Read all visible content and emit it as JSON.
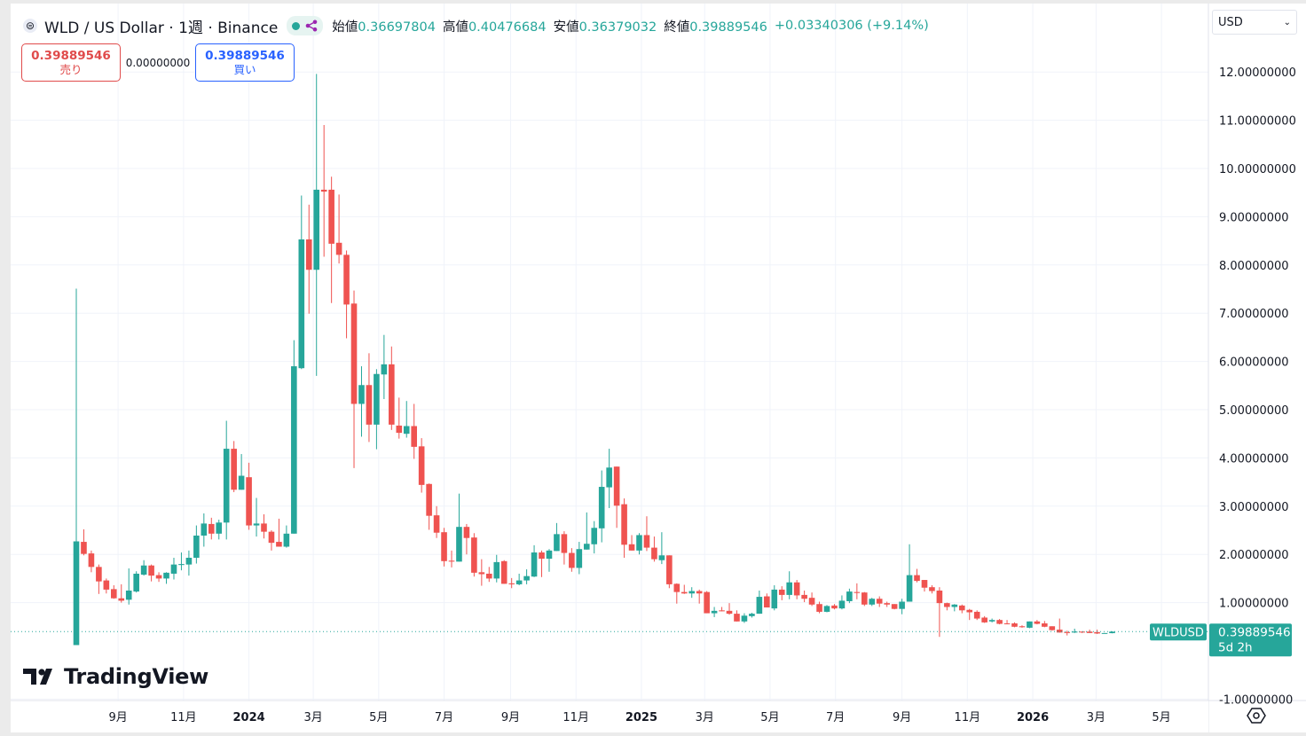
{
  "header": {
    "coin_icon": "worldcoin-logo-icon",
    "title": "WLD / US Dollar · 1週 · Binance",
    "status_dot_color": "#26a69a",
    "share_icon": "share-icon",
    "ohlc": [
      {
        "label": "始値",
        "value": "0.36697804"
      },
      {
        "label": "高値",
        "value": "0.40476684"
      },
      {
        "label": "安値",
        "value": "0.36379032"
      },
      {
        "label": "終値",
        "value": "0.39889546"
      }
    ],
    "change": "+0.03340306 (+9.14%)"
  },
  "trade": {
    "sell_price": "0.39889546",
    "sell_label": "売り",
    "spread": "0.00000000",
    "buy_price": "0.39889546",
    "buy_label": "買い"
  },
  "currency_select": {
    "value": "USD"
  },
  "logo": {
    "text": "TradingView"
  },
  "colors": {
    "up": "#26a69a",
    "down": "#ef5350",
    "grid": "#f0f3fa",
    "text": "#131722"
  },
  "chart_data": {
    "type": "candlestick",
    "symbol": "WLDUSD",
    "interval": "1週",
    "first_candle_week": "2023-07-24",
    "ylim": [
      -1,
      12.5
    ],
    "grid": true,
    "y_ticks": [
      "-1.00000000",
      "1.00000000",
      "2.00000000",
      "3.00000000",
      "4.00000000",
      "5.00000000",
      "6.00000000",
      "7.00000000",
      "8.00000000",
      "9.00000000",
      "10.00000000",
      "11.00000000",
      "12.00000000"
    ],
    "y_tick_values": [
      -1,
      1,
      2,
      3,
      4,
      5,
      6,
      7,
      8,
      9,
      10,
      11,
      12
    ],
    "x_ticks": [
      {
        "label": "9月",
        "date": "2023-09-01",
        "bold": false
      },
      {
        "label": "11月",
        "date": "2023-11-01",
        "bold": false
      },
      {
        "label": "2024",
        "date": "2024-01-01",
        "bold": true
      },
      {
        "label": "3月",
        "date": "2024-03-01",
        "bold": false
      },
      {
        "label": "5月",
        "date": "2024-05-01",
        "bold": false
      },
      {
        "label": "7月",
        "date": "2024-07-01",
        "bold": false
      },
      {
        "label": "9月",
        "date": "2024-09-01",
        "bold": false
      },
      {
        "label": "11月",
        "date": "2024-11-01",
        "bold": false
      },
      {
        "label": "2025",
        "date": "2025-01-01",
        "bold": true
      },
      {
        "label": "3月",
        "date": "2025-03-01",
        "bold": false
      },
      {
        "label": "5月",
        "date": "2025-05-01",
        "bold": false
      },
      {
        "label": "7月",
        "date": "2025-07-01",
        "bold": false
      },
      {
        "label": "9月",
        "date": "2025-09-01",
        "bold": false
      },
      {
        "label": "11月",
        "date": "2025-11-01",
        "bold": false
      },
      {
        "label": "2026",
        "date": "2026-01-01",
        "bold": true
      },
      {
        "label": "3月",
        "date": "2026-03-01",
        "bold": false
      },
      {
        "label": "5月",
        "date": "2026-05-01",
        "bold": false
      }
    ],
    "last_price": {
      "symbol_label": "WLDUSD",
      "value": "0.39889546",
      "price": 0.39889546,
      "countdown": "5d 2h"
    },
    "ohlc": [
      [
        0.12,
        7.51,
        0.12,
        2.27
      ],
      [
        2.26,
        2.52,
        1.98,
        2.01
      ],
      [
        2.02,
        2.08,
        1.63,
        1.74
      ],
      [
        1.74,
        1.79,
        1.18,
        1.44
      ],
      [
        1.46,
        1.5,
        1.19,
        1.27
      ],
      [
        1.28,
        1.36,
        1.08,
        1.09
      ],
      [
        1.09,
        1.38,
        1.0,
        1.04
      ],
      [
        1.06,
        1.71,
        0.96,
        1.25
      ],
      [
        1.23,
        1.65,
        1.21,
        1.6
      ],
      [
        1.58,
        1.88,
        1.56,
        1.77
      ],
      [
        1.77,
        1.79,
        1.44,
        1.56
      ],
      [
        1.57,
        1.63,
        1.43,
        1.5
      ],
      [
        1.5,
        1.63,
        1.39,
        1.62
      ],
      [
        1.6,
        1.93,
        1.48,
        1.79
      ],
      [
        1.78,
        2.04,
        1.67,
        1.8
      ],
      [
        1.79,
        2.08,
        1.56,
        1.93
      ],
      [
        1.93,
        2.6,
        1.81,
        2.39
      ],
      [
        2.39,
        2.85,
        2.16,
        2.64
      ],
      [
        2.63,
        2.76,
        2.31,
        2.43
      ],
      [
        2.43,
        2.72,
        2.31,
        2.66
      ],
      [
        2.66,
        4.77,
        2.31,
        4.19
      ],
      [
        4.19,
        4.35,
        3.29,
        3.34
      ],
      [
        3.34,
        4.08,
        3.34,
        3.63
      ],
      [
        3.6,
        3.9,
        2.51,
        2.6
      ],
      [
        2.6,
        3.17,
        2.37,
        2.64
      ],
      [
        2.64,
        2.83,
        2.33,
        2.47
      ],
      [
        2.47,
        2.5,
        2.08,
        2.24
      ],
      [
        2.26,
        2.74,
        2.16,
        2.16
      ],
      [
        2.16,
        2.6,
        2.14,
        2.43
      ],
      [
        2.43,
        6.44,
        2.43,
        5.9
      ],
      [
        5.86,
        9.44,
        5.84,
        8.53
      ],
      [
        8.53,
        9.25,
        6.99,
        7.9
      ],
      [
        7.9,
        11.96,
        5.7,
        9.56
      ],
      [
        9.56,
        10.9,
        8.17,
        9.52
      ],
      [
        9.56,
        9.83,
        7.21,
        8.44
      ],
      [
        8.46,
        9.46,
        8.03,
        8.21
      ],
      [
        8.21,
        8.3,
        6.48,
        7.18
      ],
      [
        7.2,
        7.47,
        3.79,
        5.12
      ],
      [
        5.12,
        5.9,
        4.44,
        5.51
      ],
      [
        5.51,
        6.17,
        4.33,
        4.69
      ],
      [
        4.69,
        5.84,
        4.18,
        5.74
      ],
      [
        5.73,
        6.55,
        5.22,
        5.94
      ],
      [
        5.94,
        6.31,
        4.58,
        4.69
      ],
      [
        4.67,
        5.25,
        4.4,
        4.52
      ],
      [
        4.5,
        5.18,
        4.42,
        4.66
      ],
      [
        4.66,
        5.12,
        3.98,
        4.23
      ],
      [
        4.24,
        4.41,
        3.28,
        3.44
      ],
      [
        3.46,
        3.47,
        2.51,
        2.8
      ],
      [
        2.81,
        3.0,
        2.34,
        2.45
      ],
      [
        2.46,
        2.55,
        1.75,
        1.86
      ],
      [
        1.87,
        2.08,
        1.73,
        1.85
      ],
      [
        1.85,
        3.26,
        1.85,
        2.57
      ],
      [
        2.57,
        2.63,
        2.0,
        2.34
      ],
      [
        2.35,
        2.44,
        1.54,
        1.62
      ],
      [
        1.63,
        1.9,
        1.35,
        1.59
      ],
      [
        1.6,
        1.74,
        1.43,
        1.5
      ],
      [
        1.5,
        1.99,
        1.42,
        1.84
      ],
      [
        1.86,
        1.88,
        1.39,
        1.39
      ],
      [
        1.4,
        1.51,
        1.3,
        1.38
      ],
      [
        1.38,
        1.6,
        1.36,
        1.46
      ],
      [
        1.46,
        1.69,
        1.38,
        1.55
      ],
      [
        1.54,
        2.19,
        1.53,
        2.04
      ],
      [
        2.04,
        2.08,
        1.53,
        1.91
      ],
      [
        1.91,
        2.11,
        1.64,
        2.08
      ],
      [
        2.07,
        2.65,
        2.07,
        2.42
      ],
      [
        2.42,
        2.48,
        1.79,
        2.03
      ],
      [
        2.03,
        2.13,
        1.64,
        1.72
      ],
      [
        1.72,
        2.26,
        1.59,
        2.11
      ],
      [
        2.1,
        2.87,
        2.1,
        2.22
      ],
      [
        2.21,
        2.69,
        2.02,
        2.55
      ],
      [
        2.54,
        3.74,
        2.25,
        3.4
      ],
      [
        3.39,
        4.19,
        2.96,
        3.8
      ],
      [
        3.82,
        3.82,
        2.55,
        3.01
      ],
      [
        3.04,
        3.16,
        1.93,
        2.2
      ],
      [
        2.21,
        2.4,
        2.08,
        2.08
      ],
      [
        2.08,
        2.44,
        2.0,
        2.4
      ],
      [
        2.4,
        2.79,
        2.07,
        2.14
      ],
      [
        2.14,
        2.37,
        1.85,
        1.9
      ],
      [
        1.88,
        2.46,
        1.8,
        1.98
      ],
      [
        1.98,
        1.98,
        1.3,
        1.38
      ],
      [
        1.39,
        1.4,
        0.98,
        1.22
      ],
      [
        1.22,
        1.37,
        1.18,
        1.19
      ],
      [
        1.19,
        1.32,
        1.1,
        1.24
      ],
      [
        1.24,
        1.27,
        0.98,
        1.19
      ],
      [
        1.22,
        1.24,
        0.78,
        0.78
      ],
      [
        0.78,
        0.91,
        0.7,
        0.83
      ],
      [
        0.84,
        0.91,
        0.82,
        0.82
      ],
      [
        0.83,
        0.99,
        0.75,
        0.77
      ],
      [
        0.77,
        0.84,
        0.61,
        0.61
      ],
      [
        0.61,
        0.78,
        0.58,
        0.73
      ],
      [
        0.72,
        0.79,
        0.69,
        0.77
      ],
      [
        0.77,
        1.25,
        0.77,
        1.12
      ],
      [
        1.13,
        1.19,
        0.9,
        0.9
      ],
      [
        0.88,
        1.36,
        0.84,
        1.27
      ],
      [
        1.27,
        1.34,
        1.05,
        1.16
      ],
      [
        1.16,
        1.65,
        1.07,
        1.42
      ],
      [
        1.42,
        1.47,
        1.07,
        1.15
      ],
      [
        1.16,
        1.25,
        1.01,
        1.08
      ],
      [
        1.1,
        1.21,
        0.93,
        0.96
      ],
      [
        0.97,
        1.02,
        0.78,
        0.81
      ],
      [
        0.81,
        0.95,
        0.8,
        0.93
      ],
      [
        0.94,
        0.97,
        0.86,
        0.88
      ],
      [
        0.88,
        1.15,
        0.86,
        1.04
      ],
      [
        1.03,
        1.29,
        0.99,
        1.23
      ],
      [
        1.22,
        1.4,
        1.07,
        1.2
      ],
      [
        1.21,
        1.22,
        0.93,
        0.96
      ],
      [
        0.96,
        1.1,
        0.93,
        1.08
      ],
      [
        1.08,
        1.13,
        0.91,
        0.98
      ],
      [
        0.99,
        1.02,
        0.91,
        0.96
      ],
      [
        0.97,
        0.97,
        0.86,
        0.87
      ],
      [
        0.87,
        1.08,
        0.76,
        1.02
      ],
      [
        1.02,
        2.21,
        1.02,
        1.57
      ],
      [
        1.57,
        1.7,
        1.42,
        1.45
      ],
      [
        1.47,
        1.47,
        1.23,
        1.31
      ],
      [
        1.32,
        1.36,
        1.19,
        1.24
      ],
      [
        1.25,
        1.32,
        0.29,
        0.99
      ],
      [
        0.99,
        1.0,
        0.84,
        0.91
      ],
      [
        0.91,
        0.97,
        0.82,
        0.96
      ],
      [
        0.94,
        0.96,
        0.78,
        0.84
      ],
      [
        0.85,
        0.87,
        0.64,
        0.8
      ],
      [
        0.81,
        0.84,
        0.64,
        0.67
      ],
      [
        0.69,
        0.72,
        0.58,
        0.59
      ],
      [
        0.61,
        0.67,
        0.59,
        0.64
      ],
      [
        0.64,
        0.66,
        0.55,
        0.56
      ],
      [
        0.57,
        0.64,
        0.55,
        0.56
      ],
      [
        0.57,
        0.59,
        0.49,
        0.5
      ],
      [
        0.51,
        0.53,
        0.48,
        0.49
      ],
      [
        0.48,
        0.61,
        0.47,
        0.61
      ],
      [
        0.61,
        0.64,
        0.55,
        0.56
      ],
      [
        0.57,
        0.62,
        0.49,
        0.5
      ],
      [
        0.51,
        0.51,
        0.42,
        0.43
      ],
      [
        0.44,
        0.67,
        0.38,
        0.38
      ],
      [
        0.39,
        0.42,
        0.32,
        0.37
      ],
      [
        0.38,
        0.46,
        0.37,
        0.4
      ],
      [
        0.4,
        0.4,
        0.37,
        0.38
      ],
      [
        0.4,
        0.44,
        0.37,
        0.37
      ],
      [
        0.39,
        0.44,
        0.35,
        0.36
      ],
      [
        0.36,
        0.37,
        0.36,
        0.37
      ],
      [
        0.36697804,
        0.40476684,
        0.36379032,
        0.39889546
      ]
    ]
  }
}
